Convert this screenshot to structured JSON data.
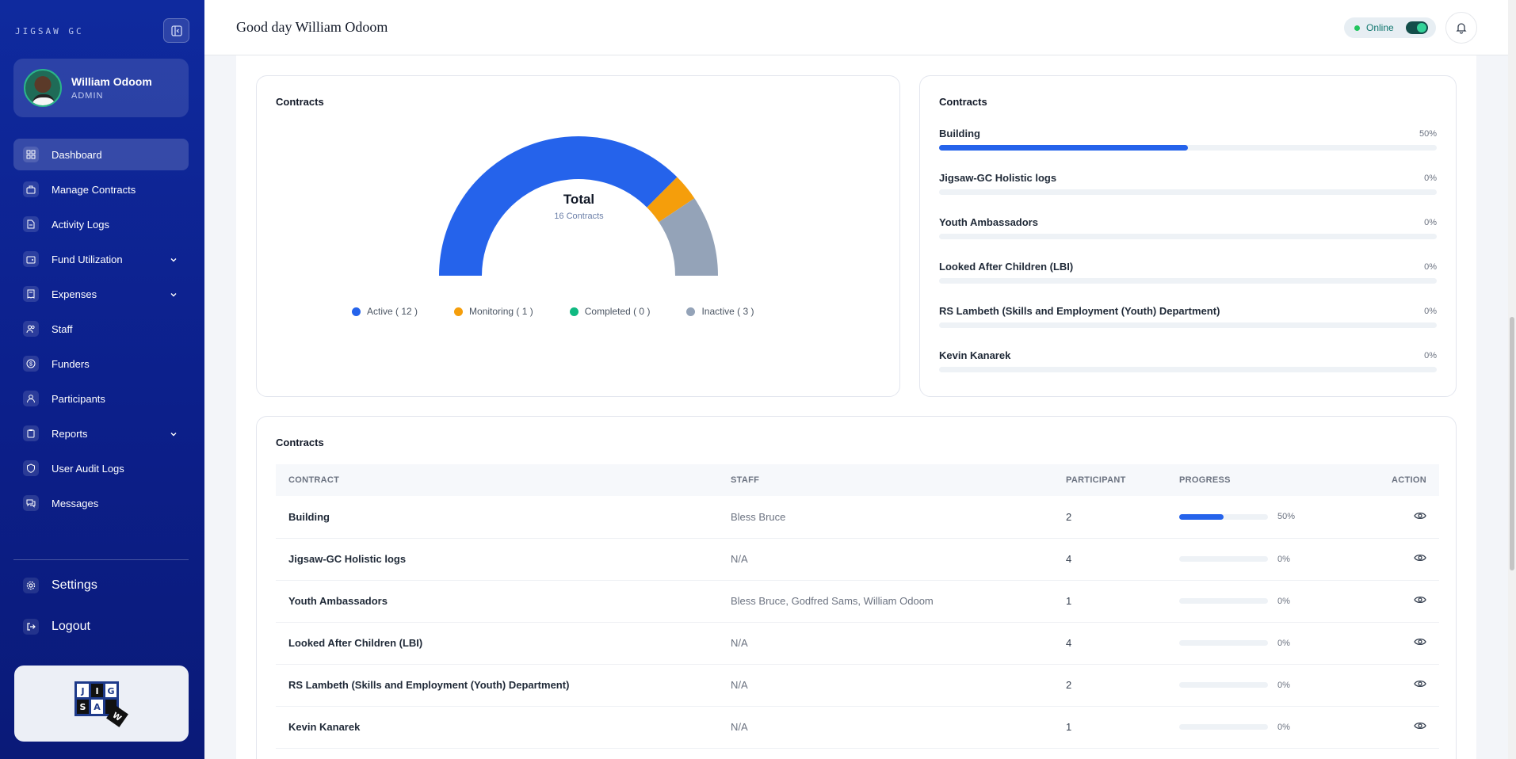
{
  "app": {
    "brand": "JIGSAW GC"
  },
  "user": {
    "name": "William Odoom",
    "role": "ADMIN"
  },
  "sidebar": {
    "items": [
      {
        "label": "Dashboard",
        "icon": "dashboard-icon",
        "active": true
      },
      {
        "label": "Manage Contracts",
        "icon": "briefcase-icon"
      },
      {
        "label": "Activity Logs",
        "icon": "document-icon"
      },
      {
        "label": "Fund Utilization",
        "icon": "wallet-icon",
        "expandable": true
      },
      {
        "label": "Expenses",
        "icon": "receipt-icon",
        "expandable": true
      },
      {
        "label": "Staff",
        "icon": "users-icon"
      },
      {
        "label": "Funders",
        "icon": "dollar-icon"
      },
      {
        "label": "Participants",
        "icon": "user-icon"
      },
      {
        "label": "Reports",
        "icon": "clipboard-icon",
        "expandable": true
      },
      {
        "label": "User Audit Logs",
        "icon": "shield-icon"
      },
      {
        "label": "Messages",
        "icon": "chat-icon"
      }
    ],
    "settings": "Settings",
    "logout": "Logout",
    "logo_text": [
      "J",
      "I",
      "G",
      "S",
      "A",
      "W"
    ]
  },
  "header": {
    "greeting": "Good day William Odoom",
    "status": "Online"
  },
  "donut_card": {
    "title": "Contracts",
    "center_title": "Total",
    "center_sub": "16 Contracts",
    "legend": [
      {
        "label": "Active ( 12 )",
        "color": "#2563eb"
      },
      {
        "label": "Monitoring ( 1 )",
        "color": "#f59e0b"
      },
      {
        "label": "Completed ( 0 )",
        "color": "#10b981"
      },
      {
        "label": "Inactive ( 3 )",
        "color": "#94a3b8"
      }
    ]
  },
  "chart_data": {
    "type": "pie",
    "categories": [
      "Active",
      "Monitoring",
      "Completed",
      "Inactive"
    ],
    "values": [
      12,
      1,
      0,
      3
    ],
    "title": "Total",
    "subtitle": "16 Contracts"
  },
  "progress_card": {
    "title": "Contracts",
    "items": [
      {
        "label": "Building",
        "pct": "50%",
        "value": 0.5
      },
      {
        "label": "Jigsaw-GC Holistic logs",
        "pct": "0%",
        "value": 0
      },
      {
        "label": "Youth Ambassadors",
        "pct": "0%",
        "value": 0
      },
      {
        "label": "Looked After Children (LBI)",
        "pct": "0%",
        "value": 0
      },
      {
        "label": "RS Lambeth (Skills and Employment (Youth) Department)",
        "pct": "0%",
        "value": 0
      },
      {
        "label": "Kevin Kanarek",
        "pct": "0%",
        "value": 0
      }
    ]
  },
  "table": {
    "title": "Contracts",
    "columns": [
      "CONTRACT",
      "STAFF",
      "PARTICIPANT",
      "PROGRESS",
      "ACTION"
    ],
    "rows": [
      {
        "contract": "Building",
        "staff": "Bless Bruce",
        "participant": "2",
        "pct": "50%",
        "value": 0.5
      },
      {
        "contract": "Jigsaw-GC Holistic logs",
        "staff": "N/A",
        "participant": "4",
        "pct": "0%",
        "value": 0
      },
      {
        "contract": "Youth Ambassadors",
        "staff": "Bless Bruce, Godfred Sams, William Odoom",
        "participant": "1",
        "pct": "0%",
        "value": 0
      },
      {
        "contract": "Looked After Children (LBI)",
        "staff": "N/A",
        "participant": "4",
        "pct": "0%",
        "value": 0
      },
      {
        "contract": "RS Lambeth (Skills and Employment (Youth) Department)",
        "staff": "N/A",
        "participant": "2",
        "pct": "0%",
        "value": 0
      },
      {
        "contract": "Kevin Kanarek",
        "staff": "N/A",
        "participant": "1",
        "pct": "0%",
        "value": 0
      }
    ]
  }
}
